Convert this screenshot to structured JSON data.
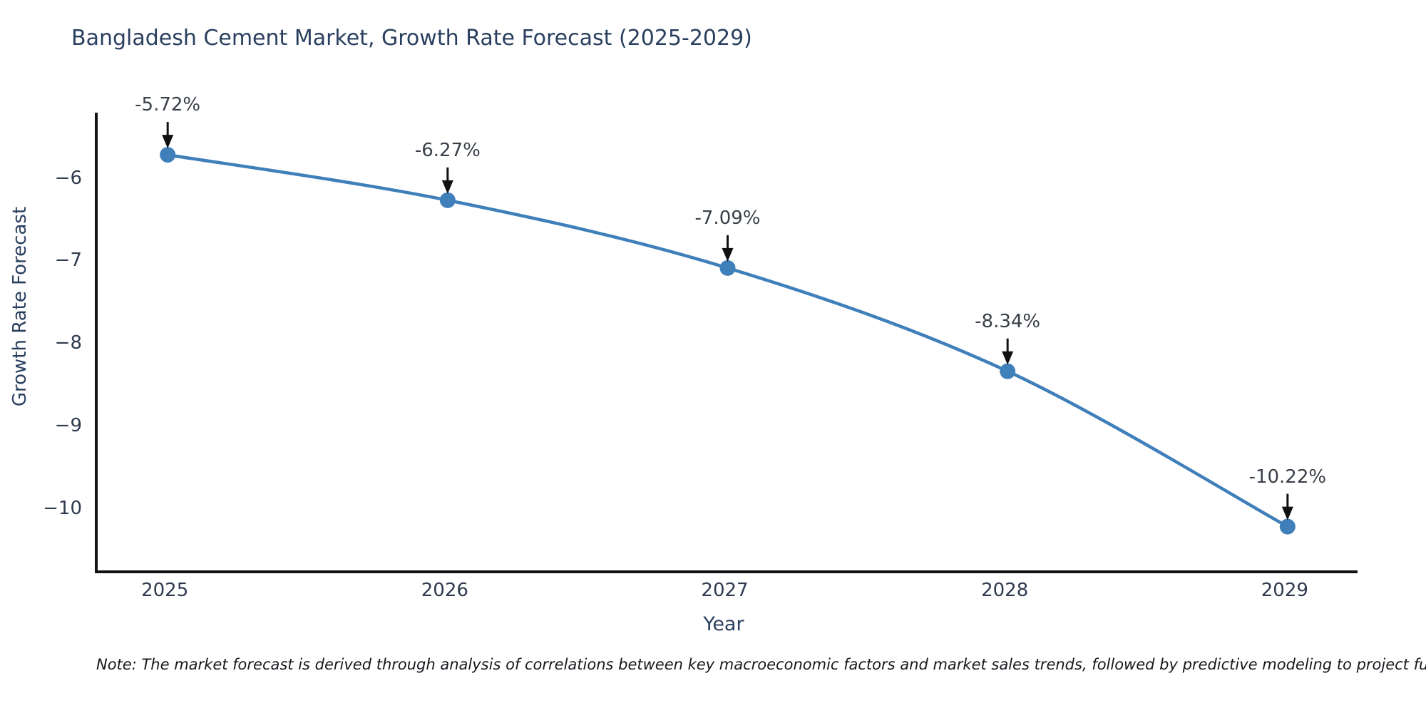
{
  "title": "Bangladesh Cement Market, Growth Rate Forecast (2025-2029)",
  "note": "Note: The market forecast is derived through analysis of correlations between key macroeconomic factors and market sales trends, followed by predictive modeling to project future sales",
  "chart_data": {
    "type": "line",
    "title": "Bangladesh Cement Market, Growth Rate Forecast (2025-2029)",
    "xlabel": "Year",
    "ylabel": "Growth Rate Forecast",
    "x": [
      2025,
      2026,
      2027,
      2028,
      2029
    ],
    "values": [
      -5.72,
      -6.27,
      -7.09,
      -8.34,
      -10.22
    ],
    "point_labels": [
      "-5.72%",
      "-6.27%",
      "-7.09%",
      "-8.34%",
      "-10.22%"
    ],
    "xticks": [
      {
        "value": 2025,
        "label": "2025"
      },
      {
        "value": 2026,
        "label": "2026"
      },
      {
        "value": 2027,
        "label": "2027"
      },
      {
        "value": 2028,
        "label": "2028"
      },
      {
        "value": 2029,
        "label": "2029"
      }
    ],
    "yticks": [
      {
        "value": -6,
        "label": "−6"
      },
      {
        "value": -7,
        "label": "−7"
      },
      {
        "value": -8,
        "label": "−8"
      },
      {
        "value": -9,
        "label": "−9"
      },
      {
        "value": -10,
        "label": "−10"
      }
    ],
    "xlim": [
      2024.75,
      2029.25
    ],
    "ylim": [
      -10.75,
      -5.21
    ],
    "grid": false,
    "legend_position": "none",
    "line_color": "#3f7fba",
    "marker_color": "#3f7fba",
    "arrow_color": "#111111",
    "annotation_text_color": "#3a4049",
    "axis_line_color": "#111111",
    "background_color": "#ffffff"
  }
}
